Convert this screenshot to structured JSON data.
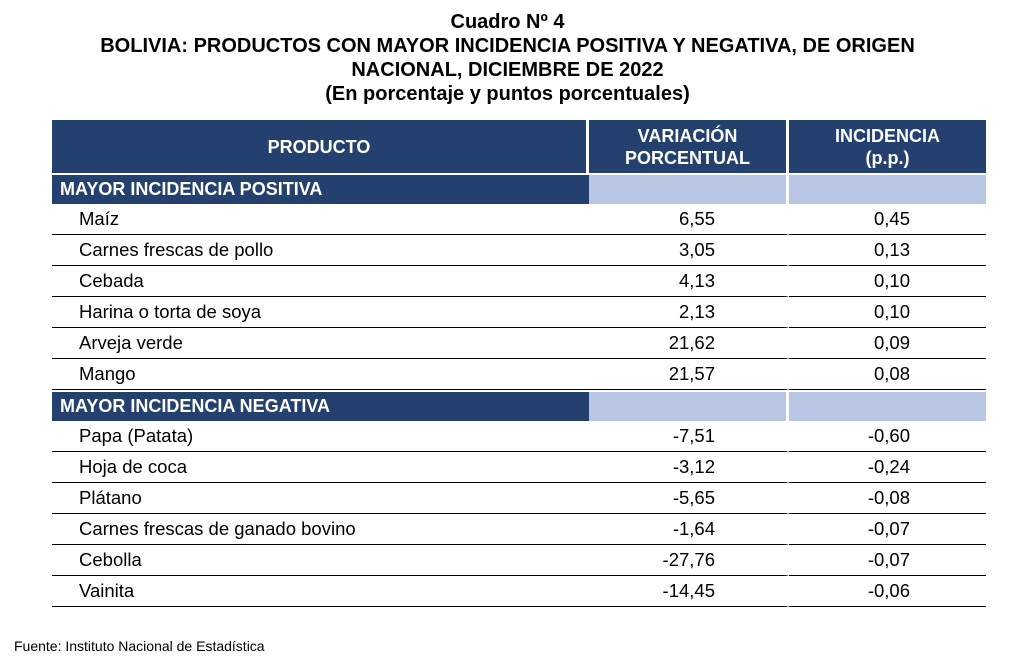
{
  "title": {
    "line1": "Cuadro Nº 4",
    "line2": "BOLIVIA: PRODUCTOS CON MAYOR INCIDENCIA POSITIVA Y NEGATIVA, DE ORIGEN",
    "line3": "NACIONAL, DICIEMBRE DE 2022",
    "line4": "(En porcentaje y puntos porcentuales)"
  },
  "header": {
    "col1": "PRODUCTO",
    "col2_line1": "VARIACIÓN",
    "col2_line2": "PORCENTUAL",
    "col3_line1": "INCIDENCIA",
    "col3_line2": "(p.p.)"
  },
  "sections": [
    {
      "label": "MAYOR INCIDENCIA POSITIVA",
      "rows": [
        {
          "producto": "Maíz",
          "variacion": "6,55",
          "incidencia": "0,45"
        },
        {
          "producto": "Carnes frescas de pollo",
          "variacion": "3,05",
          "incidencia": "0,13"
        },
        {
          "producto": "Cebada",
          "variacion": "4,13",
          "incidencia": "0,10"
        },
        {
          "producto": "Harina o torta de soya",
          "variacion": "2,13",
          "incidencia": "0,10"
        },
        {
          "producto": "Arveja verde",
          "variacion": "21,62",
          "incidencia": "0,09"
        },
        {
          "producto": "Mango",
          "variacion": "21,57",
          "incidencia": "0,08"
        }
      ]
    },
    {
      "label": "MAYOR INCIDENCIA NEGATIVA",
      "rows": [
        {
          "producto": "Papa (Patata)",
          "variacion": "-7,51",
          "incidencia": "-0,60"
        },
        {
          "producto": "Hoja de coca",
          "variacion": "-3,12",
          "incidencia": "-0,24"
        },
        {
          "producto": "Plátano",
          "variacion": "-5,65",
          "incidencia": "-0,08"
        },
        {
          "producto": "Carnes frescas de ganado bovino",
          "variacion": "-1,64",
          "incidencia": "-0,07"
        },
        {
          "producto": "Cebolla",
          "variacion": "-27,76",
          "incidencia": "-0,07"
        },
        {
          "producto": "Vainita",
          "variacion": "-14,45",
          "incidencia": "-0,06"
        }
      ]
    }
  ],
  "source": "Fuente: Instituto Nacional de Estadística",
  "colors": {
    "header_bg": "#24406e",
    "section_fill": "#b8c6e4"
  }
}
